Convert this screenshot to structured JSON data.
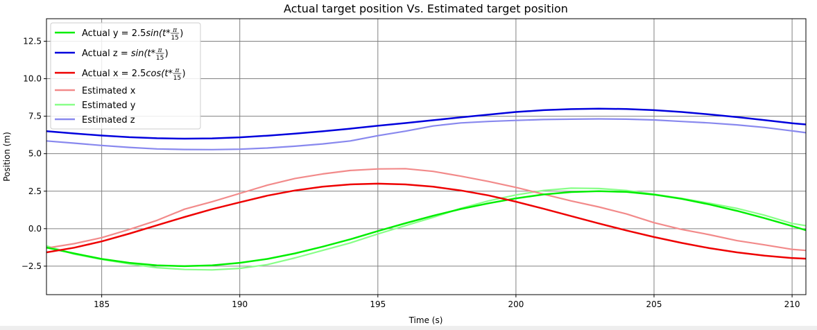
{
  "chart_data": {
    "type": "line",
    "title": "Actual target position Vs. Estimated target position",
    "xlabel": "Time (s)",
    "ylabel": "Position (m)",
    "xlim": [
      183,
      210.5
    ],
    "ylim": [
      -4.4,
      14.0
    ],
    "xticks": [
      185,
      190,
      195,
      200,
      205,
      210
    ],
    "yticks": [
      -2.5,
      0.0,
      2.5,
      5.0,
      7.5,
      10.0,
      12.5
    ],
    "xtick_labels": [
      "185",
      "190",
      "195",
      "200",
      "205",
      "210"
    ],
    "ytick_labels": [
      "−2.5",
      "0.0",
      "2.5",
      "5.0",
      "7.5",
      "10.0",
      "12.5"
    ],
    "grid": true,
    "legend_position": "top-left",
    "series": [
      {
        "name": "Actual y = 2.5sin(t*π/15)",
        "legend": {
          "prefix": "Actual y = 2.5",
          "func": "sin",
          "var": "(t",
          "pi": "π",
          "den": "15"
        },
        "color": "#00ee00",
        "x": [
          183,
          184,
          185,
          186,
          187,
          188,
          189,
          190,
          191,
          192,
          193,
          194,
          195,
          196,
          197,
          198,
          199,
          200,
          201,
          202,
          203,
          204,
          205,
          206,
          207,
          208,
          209,
          210,
          210.5
        ],
        "y": [
          -1.26,
          -1.65,
          -2.02,
          -2.28,
          -2.45,
          -2.5,
          -2.45,
          -2.28,
          -2.02,
          -1.65,
          -1.2,
          -0.71,
          -0.16,
          0.36,
          0.86,
          1.31,
          1.69,
          2.02,
          2.28,
          2.44,
          2.5,
          2.45,
          2.27,
          1.99,
          1.62,
          1.19,
          0.7,
          0.17,
          -0.1
        ]
      },
      {
        "name": "Actual z = sin(t*π/15)",
        "legend": {
          "prefix": "Actual z = ",
          "func": "sin",
          "var": "(t",
          "pi": "π",
          "den": "15"
        },
        "color": "#0000dd",
        "x": [
          183,
          184,
          185,
          186,
          187,
          188,
          189,
          190,
          191,
          192,
          193,
          194,
          195,
          196,
          197,
          198,
          199,
          200,
          201,
          202,
          203,
          204,
          205,
          206,
          207,
          208,
          209,
          210,
          210.5
        ],
        "y": [
          6.5,
          6.35,
          6.21,
          6.1,
          6.03,
          6.0,
          6.02,
          6.09,
          6.2,
          6.34,
          6.49,
          6.67,
          6.86,
          7.04,
          7.23,
          7.42,
          7.6,
          7.78,
          7.9,
          7.97,
          8.0,
          7.98,
          7.9,
          7.78,
          7.62,
          7.44,
          7.24,
          7.03,
          6.95
        ]
      },
      {
        "name": "Actual x = 2.5cos(t*π/15)",
        "legend": {
          "prefix": "Actual x = 2.5",
          "func": "cos",
          "var": "(t",
          "pi": "π",
          "den": "15"
        },
        "color": "#ee0000",
        "x": [
          183,
          184,
          185,
          186,
          187,
          188,
          189,
          190,
          191,
          192,
          193,
          194,
          195,
          196,
          197,
          198,
          199,
          200,
          201,
          202,
          203,
          204,
          205,
          206,
          207,
          208,
          209,
          210,
          210.5
        ],
        "y": [
          -1.58,
          -1.27,
          -0.85,
          -0.33,
          0.23,
          0.78,
          1.3,
          1.76,
          2.2,
          2.55,
          2.8,
          2.95,
          3.0,
          2.95,
          2.8,
          2.55,
          2.22,
          1.8,
          1.33,
          0.84,
          0.35,
          -0.12,
          -0.56,
          -0.95,
          -1.3,
          -1.58,
          -1.8,
          -1.96,
          -2.0
        ]
      },
      {
        "name": "Estimated x",
        "color": "#f28a8a",
        "x": [
          183,
          184,
          185,
          186,
          187,
          188,
          189,
          190,
          191,
          192,
          193,
          194,
          195,
          196,
          197,
          198,
          199,
          200,
          201,
          202,
          203,
          204,
          205,
          206,
          207,
          208,
          209,
          210,
          210.5
        ],
        "y": [
          -1.3,
          -1.0,
          -0.6,
          -0.05,
          0.55,
          1.3,
          1.8,
          2.35,
          2.9,
          3.35,
          3.65,
          3.88,
          3.98,
          4.0,
          3.82,
          3.5,
          3.15,
          2.75,
          2.3,
          1.85,
          1.45,
          0.98,
          0.4,
          -0.05,
          -0.4,
          -0.8,
          -1.08,
          -1.38,
          -1.45
        ]
      },
      {
        "name": "Estimated y",
        "color": "#88ff88",
        "x": [
          183,
          184,
          185,
          186,
          187,
          188,
          189,
          190,
          191,
          192,
          193,
          194,
          195,
          196,
          197,
          198,
          199,
          200,
          201,
          202,
          203,
          204,
          205,
          206,
          207,
          208,
          209,
          210,
          210.5
        ],
        "y": [
          -1.15,
          -1.7,
          -2.05,
          -2.35,
          -2.6,
          -2.72,
          -2.75,
          -2.65,
          -2.4,
          -1.95,
          -1.45,
          -0.95,
          -0.35,
          0.2,
          0.75,
          1.35,
          1.85,
          2.25,
          2.55,
          2.7,
          2.68,
          2.55,
          2.3,
          2.02,
          1.7,
          1.35,
          0.9,
          0.35,
          0.2
        ]
      },
      {
        "name": "Estimated z",
        "color": "#8888ee",
        "x": [
          183,
          184,
          185,
          186,
          187,
          188,
          189,
          190,
          191,
          192,
          193,
          194,
          195,
          196,
          197,
          198,
          199,
          200,
          201,
          202,
          203,
          204,
          205,
          206,
          207,
          208,
          209,
          210,
          210.5
        ],
        "y": [
          5.85,
          5.7,
          5.55,
          5.42,
          5.32,
          5.28,
          5.27,
          5.3,
          5.38,
          5.5,
          5.65,
          5.85,
          6.2,
          6.5,
          6.85,
          7.05,
          7.15,
          7.22,
          7.28,
          7.3,
          7.32,
          7.3,
          7.25,
          7.15,
          7.05,
          6.92,
          6.75,
          6.52,
          6.4
        ]
      }
    ]
  }
}
